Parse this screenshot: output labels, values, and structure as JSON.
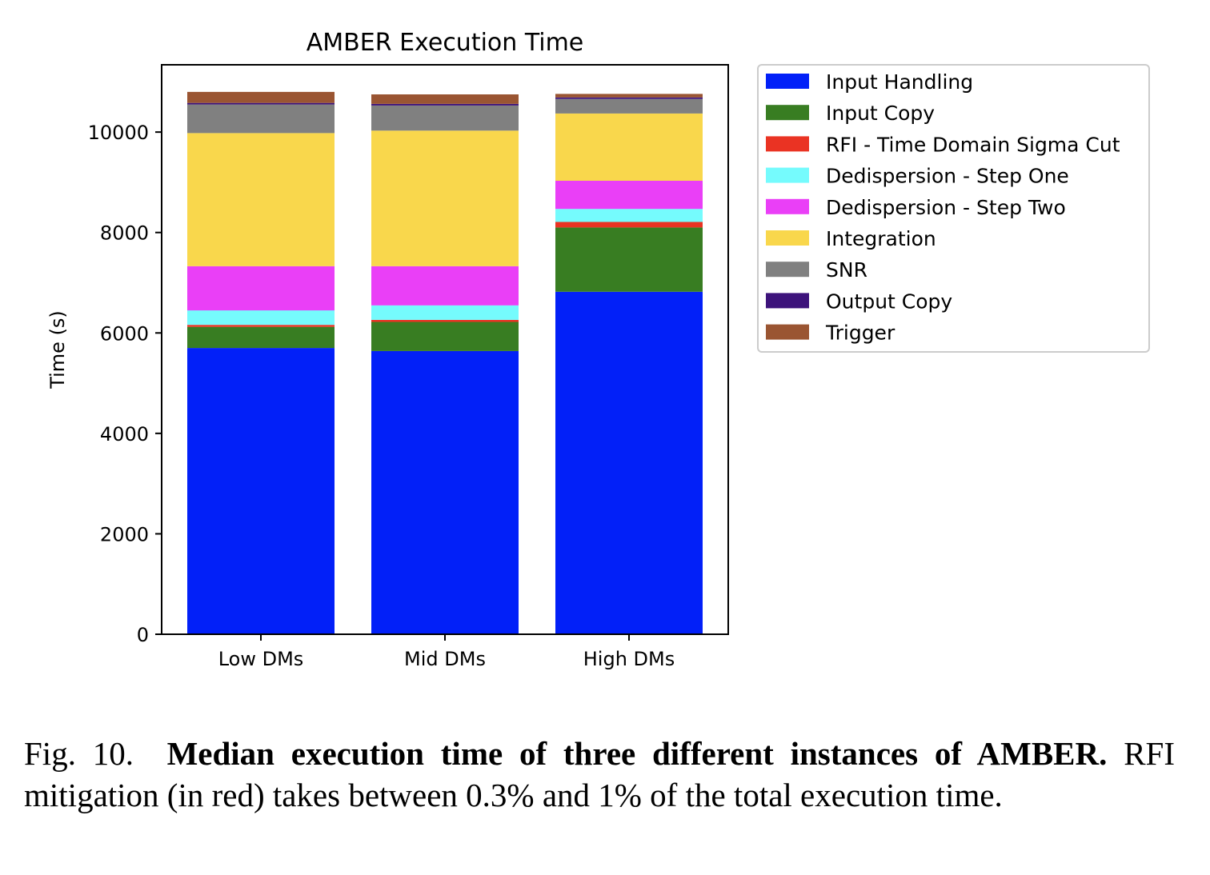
{
  "chart_data": {
    "type": "bar",
    "stacked": true,
    "title": "AMBER Execution Time",
    "xlabel": "",
    "ylabel": "Time (s)",
    "ylim": [
      0,
      11340
    ],
    "yticks": [
      0,
      2000,
      4000,
      6000,
      8000,
      10000
    ],
    "categories": [
      "Low DMs",
      "Mid DMs",
      "High DMs"
    ],
    "legend_position": "outside-right-top",
    "grid": false,
    "series": [
      {
        "name": "Input Handling",
        "color": "#0220f8",
        "values": [
          5700,
          5640,
          6820
        ]
      },
      {
        "name": "Input Copy",
        "color": "#387d22",
        "values": [
          420,
          580,
          1280
        ]
      },
      {
        "name": "RFI - Time Domain Sigma Cut",
        "color": "#ea3323",
        "values": [
          40,
          40,
          110
        ]
      },
      {
        "name": "Dedispersion - Step One",
        "color": "#75fbfd",
        "values": [
          290,
          290,
          260
        ]
      },
      {
        "name": "Dedispersion - Step Two",
        "color": "#ea3ff7",
        "values": [
          880,
          780,
          560
        ]
      },
      {
        "name": "Integration",
        "color": "#f9d74c",
        "values": [
          2650,
          2700,
          1340
        ]
      },
      {
        "name": "SNR",
        "color": "#808080",
        "values": [
          570,
          500,
          290
        ]
      },
      {
        "name": "Output Copy",
        "color": "#3d137b",
        "values": [
          30,
          30,
          30
        ]
      },
      {
        "name": "Trigger",
        "color": "#9a5532",
        "values": [
          220,
          190,
          70
        ]
      }
    ]
  },
  "caption": {
    "label": "Fig. 10.",
    "bold": "Median execution time of three different instances of AMBER.",
    "text": "RFI mitigation (in red) takes between 0.3% and 1% of the total execution time."
  }
}
